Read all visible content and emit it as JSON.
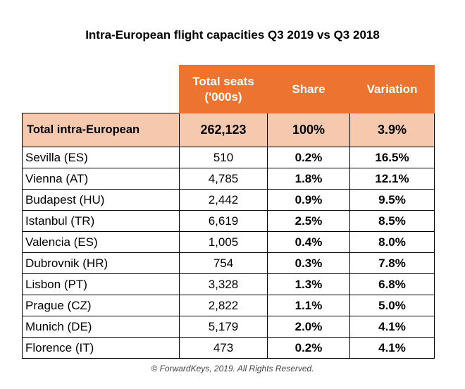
{
  "title": "Intra-European flight capacities Q3 2019 vs Q3 2018",
  "footer": "© ForwardKeys, 2019. All Rights Reserved.",
  "colors": {
    "header_bg": "#ec7330",
    "total_bg": "#f6c9ae"
  },
  "chart_data": {
    "type": "table",
    "title": "Intra-European flight capacities Q3 2019 vs Q3 2018",
    "columns": [
      "",
      "Total seats ('000s)",
      "Share",
      "Variation"
    ],
    "header_lines": {
      "seats_1": "Total seats",
      "seats_2": "('000s)",
      "share": "Share",
      "variation": "Variation"
    },
    "total": {
      "name": "Total intra-European",
      "seats": "262,123",
      "share": "100%",
      "variation": "3.9%"
    },
    "rows": [
      {
        "name": "Sevilla (ES)",
        "seats": "510",
        "share": "0.2%",
        "variation": "16.5%"
      },
      {
        "name": "Vienna (AT)",
        "seats": "4,785",
        "share": "1.8%",
        "variation": "12.1%"
      },
      {
        "name": "Budapest (HU)",
        "seats": "2,442",
        "share": "0.9%",
        "variation": "9.5%"
      },
      {
        "name": "Istanbul (TR)",
        "seats": "6,619",
        "share": "2.5%",
        "variation": "8.5%"
      },
      {
        "name": "Valencia (ES)",
        "seats": "1,005",
        "share": "0.4%",
        "variation": "8.0%"
      },
      {
        "name": "Dubrovnik (HR)",
        "seats": "754",
        "share": "0.3%",
        "variation": "7.8%"
      },
      {
        "name": "Lisbon (PT)",
        "seats": "3,328",
        "share": "1.3%",
        "variation": "6.8%"
      },
      {
        "name": "Prague (CZ)",
        "seats": "2,822",
        "share": "1.1%",
        "variation": "5.0%"
      },
      {
        "name": "Munich (DE)",
        "seats": "5,179",
        "share": "2.0%",
        "variation": "4.1%"
      },
      {
        "name": "Florence (IT)",
        "seats": "473",
        "share": "0.2%",
        "variation": "4.1%"
      }
    ]
  }
}
